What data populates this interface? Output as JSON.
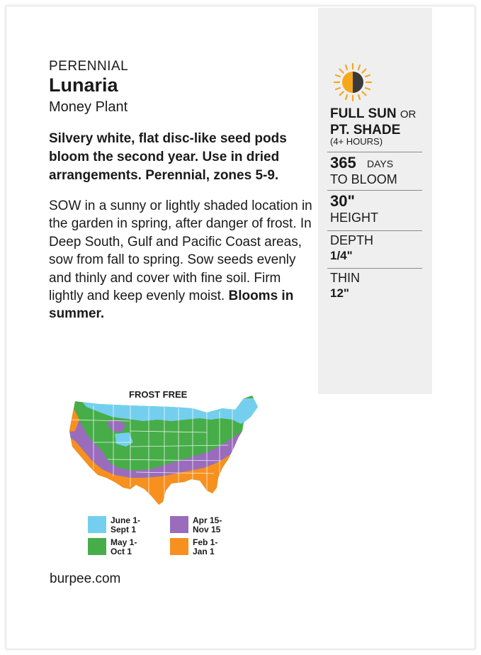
{
  "plant": {
    "type": "PERENNIAL",
    "name": "Lunaria",
    "common_name": "Money Plant",
    "description": "Silvery white, flat disc-like seed pods bloom the second year. Use in dried arrangements. Perennial, zones 5-9.",
    "sowing": "SOW in a sunny or lightly shaded location in the garden in spring, after danger of frost. In Deep South, Gulf and Pacific Coast areas, sow from fall to spring. Sow seeds evenly and thinly and cover with fine soil. Firm lightly and keep evenly moist.",
    "bloom_note": "Blooms in summer."
  },
  "specs": {
    "sun_icon": "half-sun-icon",
    "sun_main": "FULL SUN",
    "sun_or": "OR",
    "sun_alt": "PT. SHADE",
    "sun_hours": "(4+ HOURS)",
    "days_value": "365",
    "days_word": "DAYS",
    "days_label": "TO BLOOM",
    "height_value": "30\"",
    "height_label": "HEIGHT",
    "depth_label": "DEPTH",
    "depth_value": "1/4\"",
    "thin_label": "THIN",
    "thin_value": "12\""
  },
  "map": {
    "title": "FROST FREE",
    "legend": [
      {
        "line1": "June 1-",
        "line2": "Sept 1",
        "color": "#74cfee"
      },
      {
        "line1": "Apr 15-",
        "line2": "Nov 15",
        "color": "#9a6cbc"
      },
      {
        "line1": "May 1-",
        "line2": "Oct 1",
        "color": "#47ad49"
      },
      {
        "line1": "Feb 1-",
        "line2": "Jan 1",
        "color": "#f7901f"
      }
    ]
  },
  "footer": {
    "url": "burpee.com"
  },
  "colors": {
    "sidebar_bg": "#efeff0",
    "sun_yellow": "#f5a81c",
    "sun_dark": "#3a3a3a"
  }
}
